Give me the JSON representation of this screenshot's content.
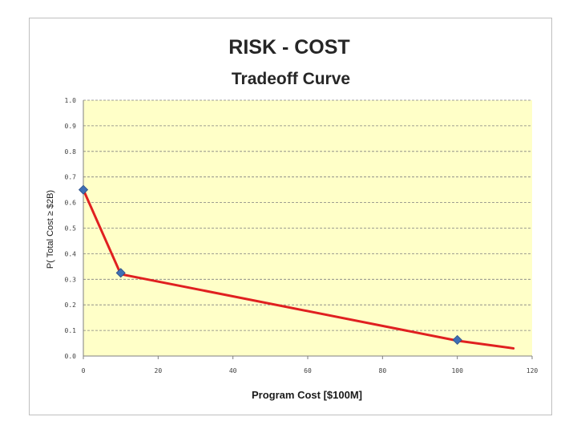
{
  "chart_data": {
    "type": "line",
    "title": "RISK - COST",
    "subtitle": "Tradeoff Curve",
    "xlabel": "Program Cost [$100M]",
    "ylabel": "P( Total Cost ≥ $2B)",
    "xlim": [
      0,
      120
    ],
    "ylim": [
      0,
      1.0
    ],
    "x_ticks": [
      "0",
      "20",
      "40",
      "60",
      "80",
      "100",
      "120"
    ],
    "y_ticks": [
      "0.0",
      "0.1",
      "0.2",
      "0.3",
      "0.4",
      "0.5",
      "0.6",
      "0.7",
      "0.8",
      "0.9",
      "1.0"
    ],
    "grid": true,
    "series": [
      {
        "x": [
          0,
          10,
          100,
          115
        ],
        "y": [
          0.65,
          0.32,
          0.06,
          0.03
        ],
        "color": "#e02020"
      }
    ],
    "markers": [
      {
        "x": 0,
        "y": 0.65
      },
      {
        "x": 10,
        "y": 0.325
      },
      {
        "x": 100,
        "y": 0.063
      }
    ],
    "marker_color": "#3f6fb4",
    "plot_background": "#ffffc8",
    "gridline_color": "#808080"
  }
}
